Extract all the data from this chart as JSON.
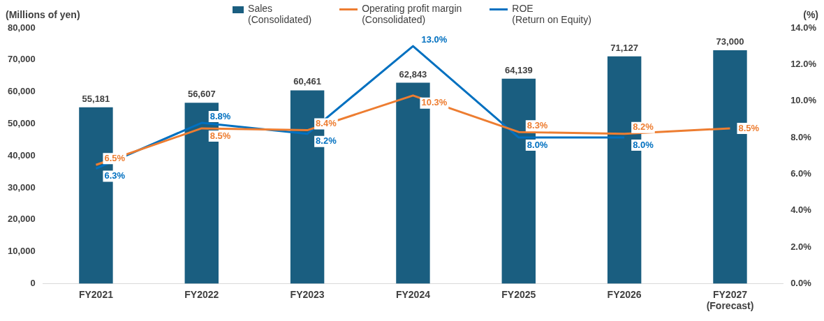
{
  "chart_data": {
    "type": "bar",
    "ylabel": "(Millions of yen)",
    "y2label": "(%)",
    "categories": [
      "FY2021",
      "FY2022",
      "FY2023",
      "FY2024",
      "FY2025",
      "FY2026",
      "FY2027\n(Forecast)"
    ],
    "series": [
      {
        "name": "Sales\n(Consolidated)",
        "type": "bar",
        "color": "#1a5e80",
        "values": [
          55181,
          56607,
          60461,
          62843,
          64139,
          71127,
          73000
        ],
        "value_labels": [
          "55,181",
          "56,607",
          "60,461",
          "62,843",
          "64,139",
          "71,127",
          "73,000"
        ]
      },
      {
        "name": "Operating profit margin\n(Consolidated)",
        "type": "line",
        "axis": "y2",
        "color": "#ed7d31",
        "values": [
          6.5,
          8.5,
          8.4,
          10.3,
          8.3,
          8.2,
          8.5
        ],
        "value_labels": [
          "6.5%",
          "8.5%",
          "8.4%",
          "10.3%",
          "8.3%",
          "8.2%",
          "8.5%"
        ]
      },
      {
        "name": "ROE\n(Return on Equity)",
        "type": "line",
        "axis": "y2",
        "color": "#0070c0",
        "values": [
          6.3,
          8.8,
          8.2,
          13.0,
          8.0,
          8.0,
          null
        ],
        "value_labels": [
          "6.3%",
          "8.8%",
          "8.2%",
          "13.0%",
          "8.0%",
          "8.0%",
          null
        ]
      }
    ],
    "ylim": [
      0,
      80000
    ],
    "yticks": [
      {
        "value": 0,
        "label": "0"
      },
      {
        "value": 10000,
        "label": "10,000"
      },
      {
        "value": 20000,
        "label": "20,000"
      },
      {
        "value": 30000,
        "label": "30,000"
      },
      {
        "value": 40000,
        "label": "40,000"
      },
      {
        "value": 50000,
        "label": "50,000"
      },
      {
        "value": 60000,
        "label": "60,000"
      },
      {
        "value": 70000,
        "label": "70,000"
      },
      {
        "value": 80000,
        "label": "80,000"
      }
    ],
    "y2lim": [
      0,
      14
    ],
    "y2ticks": [
      {
        "value": 0,
        "label": "0.0%"
      },
      {
        "value": 2,
        "label": "2.0%"
      },
      {
        "value": 4,
        "label": "4.0%"
      },
      {
        "value": 6,
        "label": "6.0%"
      },
      {
        "value": 8,
        "label": "8.0%"
      },
      {
        "value": 10,
        "label": "10.0%"
      },
      {
        "value": 12,
        "label": "12.0%"
      },
      {
        "value": 14,
        "label": "14.0%"
      }
    ],
    "grid": false,
    "legend": "top",
    "marker": "none"
  }
}
